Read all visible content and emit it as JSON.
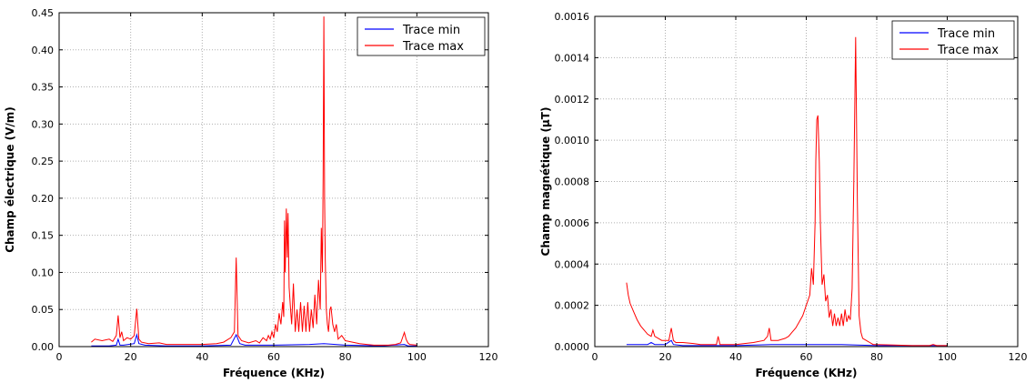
{
  "colors": {
    "trace_min": "#0000ff",
    "trace_max": "#ff0000",
    "grid": "#b0b0b0"
  },
  "chart_data": [
    {
      "type": "line",
      "title": "",
      "xlabel": "Fréquence (KHz)",
      "ylabel": "Champ électrique (V/m)",
      "xlim": [
        0,
        120
      ],
      "ylim": [
        0,
        0.45
      ],
      "xticks": [
        0,
        20,
        40,
        60,
        80,
        100,
        120
      ],
      "xtick_labels": [
        "0",
        "20",
        "40",
        "60",
        "80",
        "100",
        "120"
      ],
      "yticks": [
        0,
        0.05,
        0.1,
        0.15,
        0.2,
        0.25,
        0.3,
        0.35,
        0.4,
        0.45
      ],
      "ytick_labels": [
        "0.00",
        "0.05",
        "0.10",
        "0.15",
        "0.20",
        "0.25",
        "0.30",
        "0.35",
        "0.40",
        "0.45"
      ],
      "grid": true,
      "legend_position": "top-right",
      "series": [
        {
          "name": "Trace min",
          "color": "blue",
          "x": [
            9,
            14,
            16,
            16.5,
            17,
            18,
            21,
            21.7,
            22.3,
            24,
            30,
            40,
            48,
            49.5,
            50.5,
            52,
            60,
            70,
            74,
            80,
            90,
            96.5,
            97.5,
            100
          ],
          "y": [
            0.001,
            0.001,
            0.002,
            0.01,
            0.002,
            0.002,
            0.004,
            0.016,
            0.004,
            0.002,
            0.001,
            0.001,
            0.002,
            0.016,
            0.004,
            0.002,
            0.002,
            0.003,
            0.004,
            0.002,
            0.001,
            0.003,
            0.001,
            0.001
          ]
        },
        {
          "name": "Trace max",
          "color": "red",
          "x": [
            9,
            10,
            12,
            14,
            15,
            16,
            16.5,
            17,
            17.5,
            18,
            19,
            20,
            21,
            21.7,
            22.3,
            23,
            25,
            28,
            30,
            35,
            40,
            44,
            46,
            48,
            49,
            49.5,
            50,
            51,
            53,
            55,
            56,
            57,
            58,
            58.5,
            59,
            59.5,
            60,
            60.5,
            61,
            61.5,
            62,
            62.5,
            62.8,
            63,
            63.2,
            63.5,
            63.8,
            64,
            64.3,
            64.7,
            65,
            65.5,
            66,
            66.5,
            67,
            67.5,
            68,
            68.5,
            69,
            69.5,
            70,
            70.5,
            71,
            71.5,
            72,
            72.5,
            73,
            73.3,
            73.6,
            73.8,
            74,
            74.2,
            74.4,
            74.7,
            75,
            75.3,
            75.7,
            76,
            76.5,
            77,
            77.5,
            78,
            79,
            80,
            82,
            84,
            86,
            88,
            90,
            92,
            94,
            95.5,
            96.5,
            97,
            97.5,
            98,
            100
          ],
          "y": [
            0.006,
            0.01,
            0.008,
            0.01,
            0.007,
            0.015,
            0.042,
            0.012,
            0.02,
            0.008,
            0.012,
            0.01,
            0.015,
            0.051,
            0.01,
            0.006,
            0.004,
            0.005,
            0.003,
            0.003,
            0.003,
            0.004,
            0.006,
            0.012,
            0.02,
            0.12,
            0.015,
            0.008,
            0.005,
            0.008,
            0.005,
            0.012,
            0.008,
            0.015,
            0.01,
            0.02,
            0.012,
            0.03,
            0.02,
            0.045,
            0.03,
            0.06,
            0.04,
            0.17,
            0.1,
            0.186,
            0.12,
            0.18,
            0.08,
            0.05,
            0.03,
            0.085,
            0.02,
            0.05,
            0.02,
            0.06,
            0.02,
            0.055,
            0.02,
            0.06,
            0.02,
            0.05,
            0.025,
            0.07,
            0.03,
            0.09,
            0.05,
            0.16,
            0.1,
            0.23,
            0.445,
            0.2,
            0.12,
            0.05,
            0.03,
            0.02,
            0.05,
            0.054,
            0.03,
            0.02,
            0.03,
            0.01,
            0.015,
            0.008,
            0.006,
            0.004,
            0.003,
            0.002,
            0.002,
            0.002,
            0.003,
            0.005,
            0.019,
            0.01,
            0.005,
            0.003,
            0.002
          ]
        }
      ]
    },
    {
      "type": "line",
      "title": "",
      "xlabel": "Fréquence (KHz)",
      "ylabel": "Champ magnétique (µT)",
      "xlim": [
        0,
        120
      ],
      "ylim": [
        0,
        0.0016
      ],
      "xticks": [
        0,
        20,
        40,
        60,
        80,
        100,
        120
      ],
      "xtick_labels": [
        "0",
        "20",
        "40",
        "60",
        "80",
        "100",
        "120"
      ],
      "yticks": [
        0,
        0.0002,
        0.0004,
        0.0006,
        0.0008,
        0.001,
        0.0012,
        0.0014,
        0.0016
      ],
      "ytick_labels": [
        "0.0000",
        "0.0002",
        "0.0004",
        "0.0006",
        "0.0008",
        "0.0010",
        "0.0012",
        "0.0014",
        "0.0016"
      ],
      "grid": true,
      "legend_position": "top-right",
      "series": [
        {
          "name": "Trace min",
          "color": "blue",
          "x": [
            9,
            12,
            15,
            16,
            17,
            20,
            21.7,
            22.3,
            25,
            30,
            40,
            50,
            60,
            70,
            80,
            90,
            100
          ],
          "y": [
            1e-05,
            1e-05,
            1e-05,
            2e-05,
            1e-05,
            1e-05,
            3e-05,
            1e-05,
            5e-06,
            5e-06,
            5e-06,
            1e-05,
            1e-05,
            1e-05,
            5e-06,
            5e-06,
            5e-06
          ]
        },
        {
          "name": "Trace max",
          "color": "red",
          "x": [
            9,
            9.5,
            10,
            11,
            12,
            13,
            14,
            15,
            16,
            16.5,
            17,
            18,
            19,
            20,
            21,
            21.7,
            22.3,
            23,
            25,
            28,
            30,
            33,
            34.5,
            35,
            35.5,
            38,
            40,
            45,
            48,
            49,
            49.5,
            50,
            52,
            54,
            55,
            56,
            57,
            58,
            59,
            60,
            61,
            61.5,
            62,
            62.5,
            62.7,
            63,
            63.3,
            63.7,
            64,
            64.5,
            65,
            65.5,
            66,
            66.5,
            67,
            67.5,
            68,
            68.5,
            69,
            69.5,
            70,
            70.5,
            71,
            71.5,
            72,
            72.5,
            73,
            73.5,
            74,
            74.5,
            75,
            75.5,
            76,
            77,
            78,
            79,
            80,
            85,
            90,
            95,
            96,
            97,
            100
          ],
          "y": [
            0.00031,
            0.00025,
            0.00021,
            0.00017,
            0.00013,
            0.0001,
            8e-05,
            6e-05,
            5e-05,
            8e-05,
            5e-05,
            4e-05,
            3e-05,
            3e-05,
            3e-05,
            9e-05,
            3e-05,
            2e-05,
            2e-05,
            1.5e-05,
            1e-05,
            1e-05,
            1e-05,
            5e-05,
            1e-05,
            1e-05,
            1e-05,
            2e-05,
            3e-05,
            5e-05,
            9e-05,
            3e-05,
            3e-05,
            4e-05,
            5e-05,
            7e-05,
            9e-05,
            0.00012,
            0.00015,
            0.0002,
            0.00025,
            0.00038,
            0.0003,
            0.0006,
            0.0009,
            0.0011,
            0.00112,
            0.0009,
            0.0006,
            0.0003,
            0.00035,
            0.00022,
            0.00025,
            0.00014,
            0.00018,
            0.0001,
            0.00016,
            0.0001,
            0.00014,
            0.0001,
            0.00016,
            0.0001,
            0.00018,
            0.00012,
            0.00015,
            0.00013,
            0.00028,
            0.0008,
            0.0015,
            0.0007,
            0.00015,
            7e-05,
            4e-05,
            3e-05,
            2e-05,
            1e-05,
            1e-05,
            8e-06,
            5e-06,
            5e-06,
            1e-05,
            5e-06,
            5e-06
          ]
        }
      ]
    }
  ]
}
